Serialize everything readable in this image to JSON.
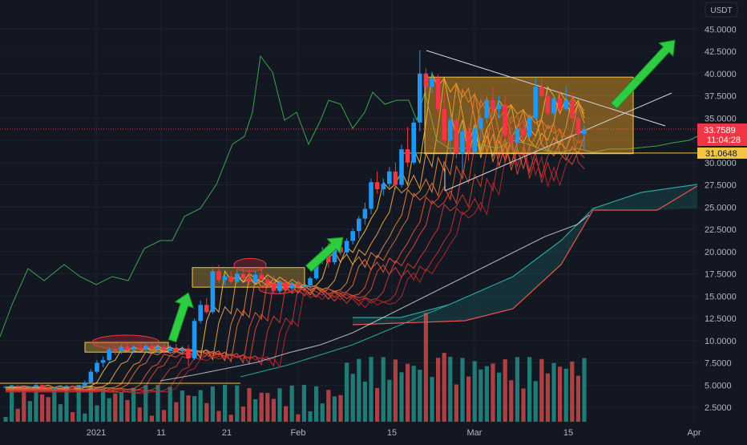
{
  "chart_data": {
    "type": "candlestick",
    "pair_quote": "USDT",
    "price_axis": {
      "ticks": [
        "45.0000",
        "42.5000",
        "40.0000",
        "37.5000",
        "35.0000",
        "32.5000",
        "30.0000",
        "27.5000",
        "25.0000",
        "22.5000",
        "20.0000",
        "17.5000",
        "15.0000",
        "12.5000",
        "10.0000",
        "7.5000",
        "5.0000",
        "2.5000"
      ],
      "range": [
        0,
        46.5
      ]
    },
    "time_axis": {
      "ticks": [
        "2021",
        "11",
        "21",
        "Feb",
        "15",
        "Mar",
        "15",
        "Apr"
      ]
    },
    "last_price": {
      "value": "33.7589",
      "countdown": "11:04:28",
      "color": "#f23645"
    },
    "level_label": {
      "value": "31.0648",
      "color": "#f5c542"
    },
    "candles": [
      [
        0,
        4.7,
        4.9,
        4.6,
        4.8
      ],
      [
        1,
        4.8,
        5.0,
        4.7,
        4.9
      ],
      [
        2,
        4.9,
        5.0,
        4.7,
        4.8
      ],
      [
        3,
        4.8,
        4.9,
        4.6,
        4.7
      ],
      [
        4,
        4.7,
        4.9,
        4.6,
        4.8
      ],
      [
        5,
        4.8,
        5.2,
        4.7,
        5.0
      ],
      [
        6,
        5.0,
        5.1,
        4.6,
        4.7
      ],
      [
        7,
        4.7,
        4.9,
        4.5,
        4.6
      ],
      [
        8,
        4.6,
        4.8,
        4.4,
        4.7
      ],
      [
        9,
        4.7,
        4.9,
        4.6,
        4.8
      ],
      [
        10,
        4.8,
        5.0,
        4.7,
        4.9
      ],
      [
        11,
        4.9,
        5.0,
        4.7,
        4.8
      ],
      [
        12,
        4.8,
        5.0,
        4.7,
        4.9
      ],
      [
        13,
        4.9,
        5.5,
        4.8,
        5.3
      ],
      [
        14,
        5.3,
        6.8,
        5.2,
        6.5
      ],
      [
        15,
        6.5,
        7.8,
        6.3,
        7.5
      ],
      [
        16,
        7.5,
        8.2,
        7.0,
        7.8
      ],
      [
        17,
        7.8,
        9.2,
        7.6,
        9.0
      ],
      [
        18,
        9.0,
        9.4,
        8.4,
        8.8
      ],
      [
        19,
        8.8,
        9.6,
        8.5,
        9.3
      ],
      [
        20,
        9.3,
        9.8,
        8.7,
        9.0
      ],
      [
        21,
        9.0,
        9.5,
        8.6,
        9.2
      ],
      [
        22,
        9.2,
        9.7,
        8.8,
        9.0
      ],
      [
        23,
        9.0,
        9.6,
        8.7,
        9.4
      ],
      [
        24,
        9.4,
        9.8,
        8.8,
        9.0
      ],
      [
        25,
        9.0,
        9.6,
        8.6,
        9.3
      ],
      [
        26,
        9.3,
        9.7,
        8.6,
        8.9
      ],
      [
        27,
        8.9,
        9.5,
        8.5,
        9.2
      ],
      [
        28,
        9.2,
        9.6,
        8.6,
        8.8
      ],
      [
        29,
        8.8,
        9.4,
        8.4,
        9.1
      ],
      [
        30,
        9.1,
        9.5,
        7.2,
        8.0
      ],
      [
        31,
        8.0,
        12.5,
        7.8,
        12.2
      ],
      [
        32,
        12.2,
        14.5,
        11.9,
        14.0
      ],
      [
        33,
        14.0,
        14.8,
        13.0,
        13.2
      ],
      [
        34,
        13.2,
        18.3,
        13.0,
        17.8
      ],
      [
        35,
        17.8,
        18.5,
        16.5,
        16.8
      ],
      [
        36,
        16.8,
        17.5,
        16.2,
        17.2
      ],
      [
        37,
        17.2,
        17.8,
        16.4,
        16.6
      ],
      [
        38,
        16.6,
        18.0,
        16.4,
        17.5
      ],
      [
        39,
        17.5,
        18.3,
        16.8,
        17.0
      ],
      [
        40,
        17.0,
        18.0,
        16.2,
        16.6
      ],
      [
        41,
        16.6,
        17.8,
        16.4,
        17.4
      ],
      [
        42,
        17.4,
        18.2,
        16.6,
        16.9
      ],
      [
        43,
        16.9,
        17.6,
        16.0,
        16.4
      ],
      [
        44,
        16.4,
        17.3,
        15.3,
        15.6
      ],
      [
        45,
        15.6,
        16.8,
        15.2,
        16.5
      ],
      [
        46,
        16.5,
        16.9,
        15.6,
        15.9
      ],
      [
        47,
        15.9,
        16.6,
        15.6,
        16.3
      ],
      [
        48,
        16.3,
        16.8,
        15.8,
        16.0
      ],
      [
        49,
        16.0,
        16.5,
        15.6,
        16.2
      ],
      [
        50,
        16.2,
        17.2,
        15.9,
        17.0
      ],
      [
        51,
        17.0,
        19.5,
        16.8,
        19.2
      ],
      [
        52,
        19.2,
        20.5,
        18.6,
        20.0
      ],
      [
        53,
        20.0,
        21.0,
        18.2,
        18.8
      ],
      [
        54,
        18.8,
        20.8,
        18.5,
        20.5
      ],
      [
        55,
        20.5,
        21.2,
        19.6,
        19.9
      ],
      [
        56,
        19.9,
        21.5,
        19.7,
        21.2
      ],
      [
        57,
        21.2,
        22.6,
        20.8,
        22.3
      ],
      [
        58,
        22.3,
        24.0,
        21.5,
        23.7
      ],
      [
        59,
        23.7,
        25.5,
        23.0,
        24.8
      ],
      [
        60,
        24.8,
        28.2,
        24.2,
        27.8
      ],
      [
        61,
        27.8,
        29.0,
        26.5,
        27.0
      ],
      [
        62,
        27.0,
        28.2,
        26.3,
        27.6
      ],
      [
        63,
        27.6,
        29.5,
        27.2,
        29.0
      ],
      [
        64,
        29.0,
        30.0,
        27.0,
        27.5
      ],
      [
        65,
        27.5,
        32.0,
        27.2,
        31.5
      ],
      [
        66,
        31.5,
        34.0,
        29.5,
        30.0
      ],
      [
        67,
        30.0,
        35.0,
        29.8,
        34.5
      ],
      [
        68,
        34.5,
        42.6,
        33.5,
        40.0
      ],
      [
        69,
        40.0,
        40.6,
        37.5,
        38.5
      ],
      [
        70,
        38.5,
        40.2,
        37.8,
        39.5
      ],
      [
        71,
        39.5,
        39.9,
        35.5,
        36.0
      ],
      [
        72,
        36.0,
        38.0,
        32.0,
        32.5
      ],
      [
        73,
        32.5,
        35.5,
        31.0,
        34.8
      ],
      [
        74,
        34.8,
        35.5,
        30.5,
        31.0
      ],
      [
        75,
        31.0,
        34.0,
        29.0,
        33.5
      ],
      [
        76,
        33.5,
        34.0,
        30.2,
        31.2
      ],
      [
        77,
        31.2,
        34.0,
        31.0,
        33.8
      ],
      [
        78,
        33.8,
        35.5,
        32.5,
        35.0
      ],
      [
        79,
        35.0,
        37.5,
        34.5,
        37.0
      ],
      [
        80,
        37.0,
        38.5,
        35.5,
        36.0
      ],
      [
        81,
        36.0,
        37.5,
        35.0,
        36.5
      ],
      [
        82,
        36.5,
        37.5,
        32.5,
        33.0
      ],
      [
        83,
        33.0,
        34.0,
        31.8,
        32.2
      ],
      [
        84,
        32.2,
        34.2,
        31.5,
        33.8
      ],
      [
        85,
        33.8,
        35.0,
        32.4,
        33.0
      ],
      [
        86,
        33.0,
        35.2,
        32.7,
        35.0
      ],
      [
        87,
        35.0,
        39.5,
        34.8,
        38.5
      ],
      [
        88,
        38.5,
        39.5,
        37.3,
        37.5
      ],
      [
        89,
        37.5,
        38.0,
        35.2,
        35.5
      ],
      [
        90,
        35.5,
        37.5,
        35.2,
        37.2
      ],
      [
        91,
        37.2,
        38.0,
        35.6,
        36.0
      ],
      [
        92,
        36.0,
        38.5,
        35.8,
        37.0
      ],
      [
        93,
        37.0,
        37.8,
        34.5,
        35.0
      ],
      [
        94,
        35.0,
        35.8,
        32.5,
        33.2
      ],
      [
        95,
        33.2,
        34.2,
        31.5,
        33.76
      ]
    ],
    "volume_up_color": "#26a69a",
    "volume_down_color": "#ef5350",
    "candle_up_color": "#2196f3",
    "candle_down_color": "#f23645"
  }
}
